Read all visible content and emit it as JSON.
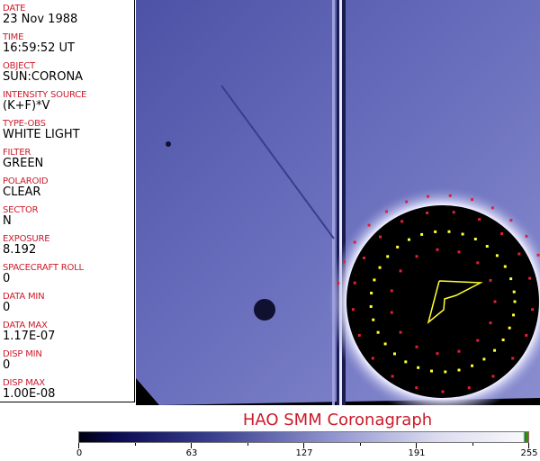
{
  "header_fields": [
    {
      "label": "DATE",
      "value": "23 Nov 1988"
    },
    {
      "label": "TIME",
      "value": "16:59:52 UT"
    },
    {
      "label": "OBJECT",
      "value": "SUN:CORONA"
    },
    {
      "label": "INTENSITY SOURCE",
      "value": "(K+F)*V"
    },
    {
      "label": "TYPE-OBS",
      "value": "WHITE LIGHT"
    },
    {
      "label": "FILTER",
      "value": "GREEN"
    },
    {
      "label": "POLAROID",
      "value": "CLEAR"
    },
    {
      "label": "SECTOR",
      "value": "N"
    },
    {
      "label": "EXPOSURE",
      "value": "8.192"
    },
    {
      "label": "SPACECRAFT ROLL",
      "value": "0"
    },
    {
      "label": "DATA MIN",
      "value": "0"
    },
    {
      "label": "DATA MAX",
      "value": "1.17E-07"
    },
    {
      "label": "DISP MIN",
      "value": "0"
    },
    {
      "label": "DISP MAX",
      "value": "1.00E-08"
    }
  ],
  "title": "HAO  SMM Coronagraph",
  "colorbar": {
    "ticks": [
      "0",
      "63",
      "127",
      "191",
      "255"
    ]
  },
  "colors": {
    "label": "#cc1a2a",
    "corona": "#5a5fb0",
    "occulter": "#000000",
    "markers_red": "#e0203a",
    "markers_yellow": "#ffff33"
  }
}
